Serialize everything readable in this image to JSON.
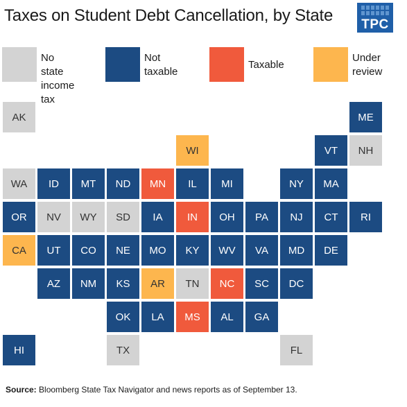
{
  "title": "Taxes on Student Debt Cancellation, by State",
  "logo_text": "TPC",
  "colors": {
    "no_state_income_tax": "#d3d3d3",
    "not_taxable": "#1c4b82",
    "taxable": "#f05a3c",
    "under_review": "#fdb64e"
  },
  "legend": [
    {
      "key": "no_state_income_tax",
      "label": "No state\nincome tax"
    },
    {
      "key": "not_taxable",
      "label": "Not\ntaxable"
    },
    {
      "key": "taxable",
      "label": "Taxable"
    },
    {
      "key": "under_review",
      "label": "Under\nreview"
    }
  ],
  "states": [
    {
      "abbr": "AK",
      "status": "no_state_income_tax"
    },
    {
      "abbr": "ME",
      "status": "not_taxable"
    },
    {
      "abbr": "WI",
      "status": "under_review"
    },
    {
      "abbr": "VT",
      "status": "not_taxable"
    },
    {
      "abbr": "NH",
      "status": "no_state_income_tax"
    },
    {
      "abbr": "WA",
      "status": "no_state_income_tax"
    },
    {
      "abbr": "ID",
      "status": "not_taxable"
    },
    {
      "abbr": "MT",
      "status": "not_taxable"
    },
    {
      "abbr": "ND",
      "status": "not_taxable"
    },
    {
      "abbr": "MN",
      "status": "taxable"
    },
    {
      "abbr": "IL",
      "status": "not_taxable"
    },
    {
      "abbr": "MI",
      "status": "not_taxable"
    },
    {
      "abbr": "NY",
      "status": "not_taxable"
    },
    {
      "abbr": "MA",
      "status": "not_taxable"
    },
    {
      "abbr": "OR",
      "status": "not_taxable"
    },
    {
      "abbr": "NV",
      "status": "no_state_income_tax"
    },
    {
      "abbr": "WY",
      "status": "no_state_income_tax"
    },
    {
      "abbr": "SD",
      "status": "no_state_income_tax"
    },
    {
      "abbr": "IA",
      "status": "not_taxable"
    },
    {
      "abbr": "IN",
      "status": "taxable"
    },
    {
      "abbr": "OH",
      "status": "not_taxable"
    },
    {
      "abbr": "PA",
      "status": "not_taxable"
    },
    {
      "abbr": "NJ",
      "status": "not_taxable"
    },
    {
      "abbr": "CT",
      "status": "not_taxable"
    },
    {
      "abbr": "RI",
      "status": "not_taxable"
    },
    {
      "abbr": "CA",
      "status": "under_review"
    },
    {
      "abbr": "UT",
      "status": "not_taxable"
    },
    {
      "abbr": "CO",
      "status": "not_taxable"
    },
    {
      "abbr": "NE",
      "status": "not_taxable"
    },
    {
      "abbr": "MO",
      "status": "not_taxable"
    },
    {
      "abbr": "KY",
      "status": "not_taxable"
    },
    {
      "abbr": "WV",
      "status": "not_taxable"
    },
    {
      "abbr": "VA",
      "status": "not_taxable"
    },
    {
      "abbr": "MD",
      "status": "not_taxable"
    },
    {
      "abbr": "DE",
      "status": "not_taxable"
    },
    {
      "abbr": "AZ",
      "status": "not_taxable"
    },
    {
      "abbr": "NM",
      "status": "not_taxable"
    },
    {
      "abbr": "KS",
      "status": "not_taxable"
    },
    {
      "abbr": "AR",
      "status": "under_review"
    },
    {
      "abbr": "TN",
      "status": "no_state_income_tax"
    },
    {
      "abbr": "NC",
      "status": "taxable"
    },
    {
      "abbr": "SC",
      "status": "not_taxable"
    },
    {
      "abbr": "DC",
      "status": "not_taxable"
    },
    {
      "abbr": "OK",
      "status": "not_taxable"
    },
    {
      "abbr": "LA",
      "status": "not_taxable"
    },
    {
      "abbr": "MS",
      "status": "taxable"
    },
    {
      "abbr": "AL",
      "status": "not_taxable"
    },
    {
      "abbr": "GA",
      "status": "not_taxable"
    },
    {
      "abbr": "HI",
      "status": "not_taxable"
    },
    {
      "abbr": "TX",
      "status": "no_state_income_tax"
    },
    {
      "abbr": "FL",
      "status": "no_state_income_tax"
    }
  ],
  "source_label": "Source:",
  "source_text": "Bloomberg State Tax Navigator and news reports as of September 13."
}
